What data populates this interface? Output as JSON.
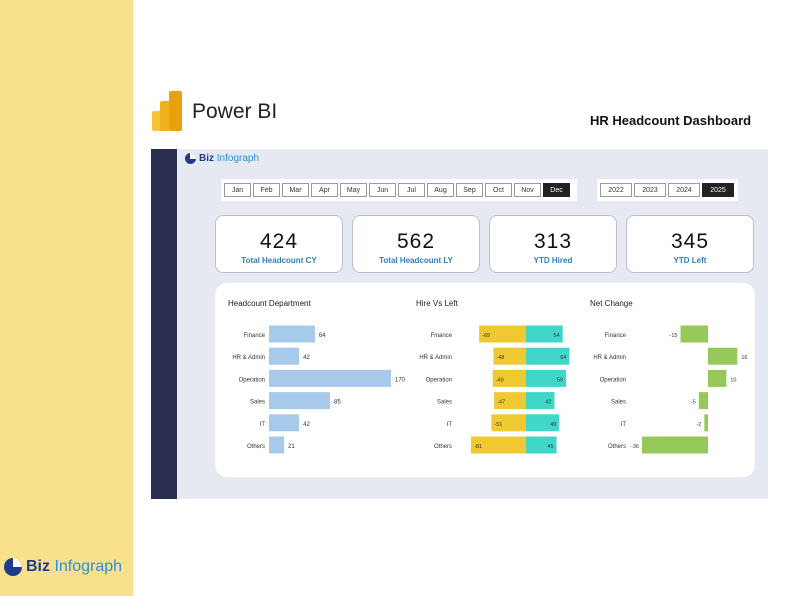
{
  "header": {
    "product_name": "Power BI",
    "dashboard_title": "HR Headcount Dashboard"
  },
  "brand": {
    "name_part1": "Biz",
    "name_part2": " Infograph"
  },
  "colors": {
    "strip": "#f9e08a",
    "navy": "#2a2e4f",
    "bar_blue": "#a7c9ea",
    "hire_teal": "#40d6c8",
    "left_yellow": "#f0c832",
    "net_green": "#96c85a",
    "kpi_label": "#2e7fb8"
  },
  "month_slicer": {
    "items": [
      "Jan",
      "Feb",
      "Mar",
      "Apr",
      "May",
      "Jun",
      "Jul",
      "Aug",
      "Sep",
      "Oct",
      "Nov",
      "Dec"
    ],
    "selected": "Dec"
  },
  "year_slicer": {
    "items": [
      "2022",
      "2023",
      "2024",
      "2025"
    ],
    "selected": "2025"
  },
  "kpis": [
    {
      "value": "424",
      "label": "Total Headcount CY"
    },
    {
      "value": "562",
      "label": "Total Headcount LY"
    },
    {
      "value": "313",
      "label": "YTD Hired"
    },
    {
      "value": "345",
      "label": "YTD Left"
    }
  ],
  "chart_data": [
    {
      "type": "bar",
      "title": "Headcount Department",
      "categories": [
        "Finance",
        "HR & Admin",
        "Operation",
        "Sales",
        "IT",
        "Others"
      ],
      "values": [
        64,
        42,
        170,
        85,
        42,
        21
      ]
    },
    {
      "type": "bar",
      "title": "Hire Vs Left",
      "categories": [
        "Finance",
        "HR & Admin",
        "Operation",
        "Sales",
        "IT",
        "Others"
      ],
      "series": [
        {
          "values": [
            -69,
            -48,
            -49,
            -47,
            -51,
            -81
          ]
        },
        {
          "values": [
            54,
            64,
            59,
            42,
            49,
            45
          ]
        }
      ]
    },
    {
      "type": "bar",
      "title": "Net Change",
      "categories": [
        "Finance",
        "HR & Admin",
        "Operation",
        "Sales",
        "IT",
        "Others"
      ],
      "values": [
        -15,
        16,
        10,
        -5,
        -2,
        -36
      ]
    }
  ]
}
